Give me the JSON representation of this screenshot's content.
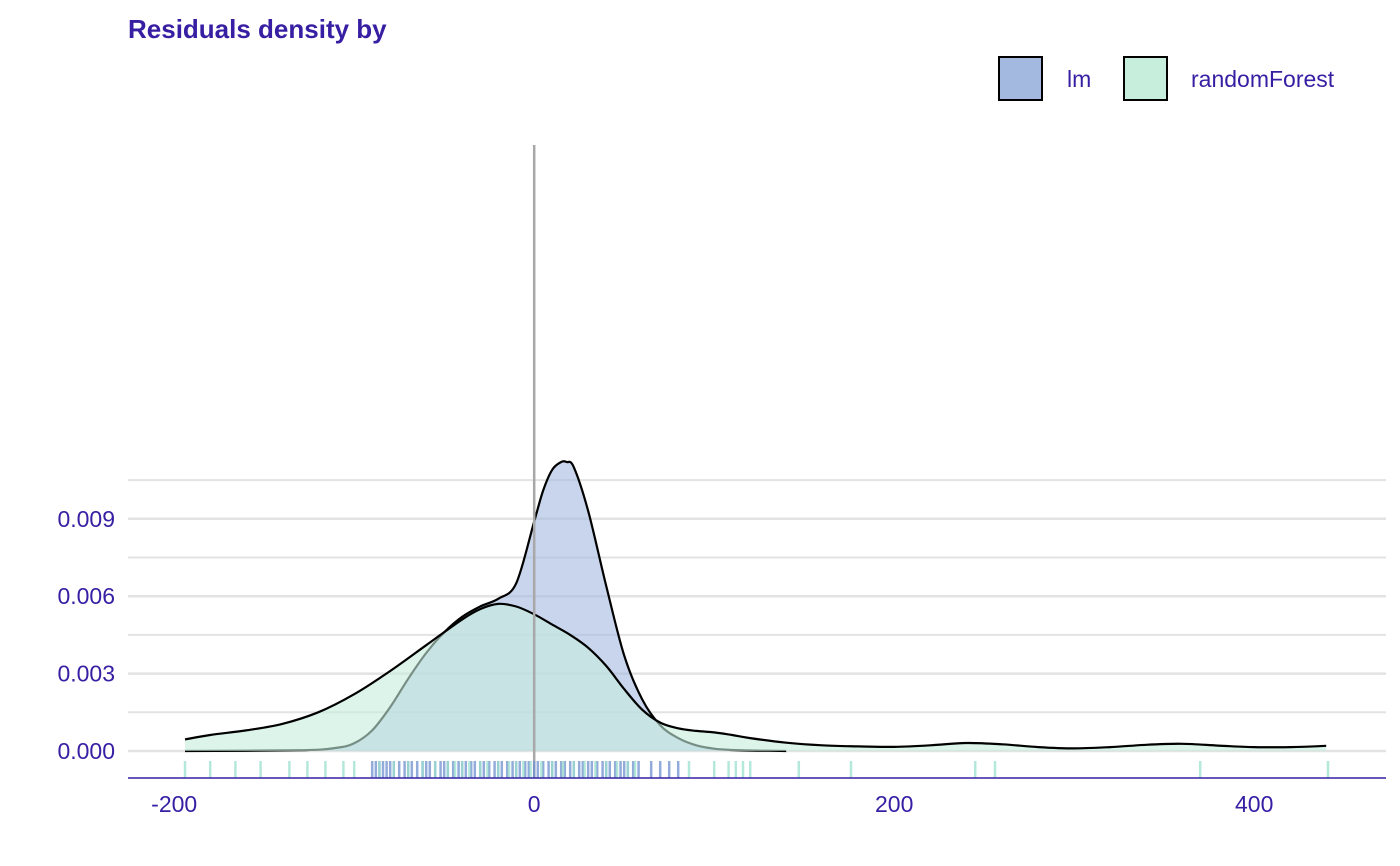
{
  "chart_data": {
    "type": "area",
    "title": "Residuals density by",
    "xlabel": "",
    "ylabel": "",
    "xlim": [
      -200,
      440
    ],
    "ylim": [
      0,
      0.01195
    ],
    "x_ticks": [
      -200,
      0,
      200,
      400
    ],
    "x_tick_labels": [
      "-200",
      "0",
      "200",
      "400"
    ],
    "y_ticks": [
      0.0,
      0.003,
      0.006,
      0.009
    ],
    "y_tick_labels": [
      "0.000",
      "0.003",
      "0.006",
      "0.009"
    ],
    "grid": true,
    "legend_position": "top-right",
    "reference_line_x": 0,
    "series": [
      {
        "name": "lm",
        "color": "#A3B9DF",
        "x": [
          -194,
          -130,
          -110,
          -100,
          -90,
          -80,
          -70,
          -60,
          -50,
          -40,
          -30,
          -20,
          -10,
          0,
          5,
          10,
          15,
          18,
          22,
          30,
          40,
          50,
          60,
          70,
          80,
          90,
          100,
          110,
          120,
          130,
          140
        ],
        "y": [
          0.0,
          3e-05,
          0.00012,
          0.0003,
          0.0008,
          0.0017,
          0.0028,
          0.0038,
          0.0046,
          0.0052,
          0.0056,
          0.0059,
          0.0065,
          0.0089,
          0.0101,
          0.0109,
          0.0112,
          0.0112,
          0.011,
          0.0093,
          0.0064,
          0.0037,
          0.002,
          0.001,
          0.0005,
          0.00022,
          9e-05,
          4e-05,
          2e-05,
          1e-05,
          0.0
        ]
      },
      {
        "name": "randomForest",
        "color": "#C7EDDD",
        "x": [
          -194,
          -180,
          -160,
          -140,
          -120,
          -100,
          -80,
          -60,
          -40,
          -30,
          -20,
          -10,
          0,
          10,
          20,
          30,
          40,
          50,
          60,
          70,
          80,
          90,
          100,
          110,
          120,
          140,
          160,
          180,
          200,
          220,
          240,
          260,
          280,
          300,
          320,
          340,
          360,
          380,
          400,
          420,
          440
        ],
        "y": [
          0.00045,
          0.00062,
          0.0008,
          0.00105,
          0.0015,
          0.0022,
          0.0031,
          0.0041,
          0.0051,
          0.0055,
          0.0057,
          0.0056,
          0.0053,
          0.0049,
          0.0045,
          0.004,
          0.0033,
          0.0024,
          0.0016,
          0.0011,
          0.00088,
          0.00078,
          0.00072,
          0.00062,
          0.0005,
          0.00032,
          0.00022,
          0.00018,
          0.00016,
          0.00022,
          0.00031,
          0.00026,
          0.00015,
          0.0001,
          0.00015,
          0.00024,
          0.00028,
          0.00021,
          0.00015,
          0.00015,
          0.0002
        ]
      }
    ],
    "rug": {
      "lm": [
        -90,
        -88,
        -86,
        -84,
        -82,
        -80,
        -78,
        -75,
        -72,
        -70,
        -68,
        -65,
        -62,
        -60,
        -58,
        -55,
        -52,
        -50,
        -48,
        -45,
        -42,
        -40,
        -38,
        -35,
        -33,
        -30,
        -28,
        -25,
        -22,
        -20,
        -18,
        -15,
        -12,
        -10,
        -8,
        -5,
        -3,
        0,
        2,
        5,
        8,
        10,
        12,
        15,
        17,
        20,
        22,
        25,
        27,
        30,
        32,
        35,
        38,
        40,
        42,
        45,
        48,
        50,
        52,
        55,
        58,
        65,
        70,
        75,
        80
      ],
      "randomForest": [
        -194,
        -180,
        -166,
        -152,
        -136,
        -126,
        -116,
        -106,
        -100,
        -86,
        -78,
        -70,
        -62,
        -55,
        -48,
        -44,
        -40,
        -36,
        -30,
        -26,
        -20,
        -14,
        -10,
        -6,
        -2,
        4,
        10,
        16,
        22,
        28,
        34,
        40,
        46,
        52,
        56,
        86,
        100,
        108,
        112,
        116,
        120,
        147,
        176,
        245,
        256,
        370,
        441
      ]
    }
  }
}
